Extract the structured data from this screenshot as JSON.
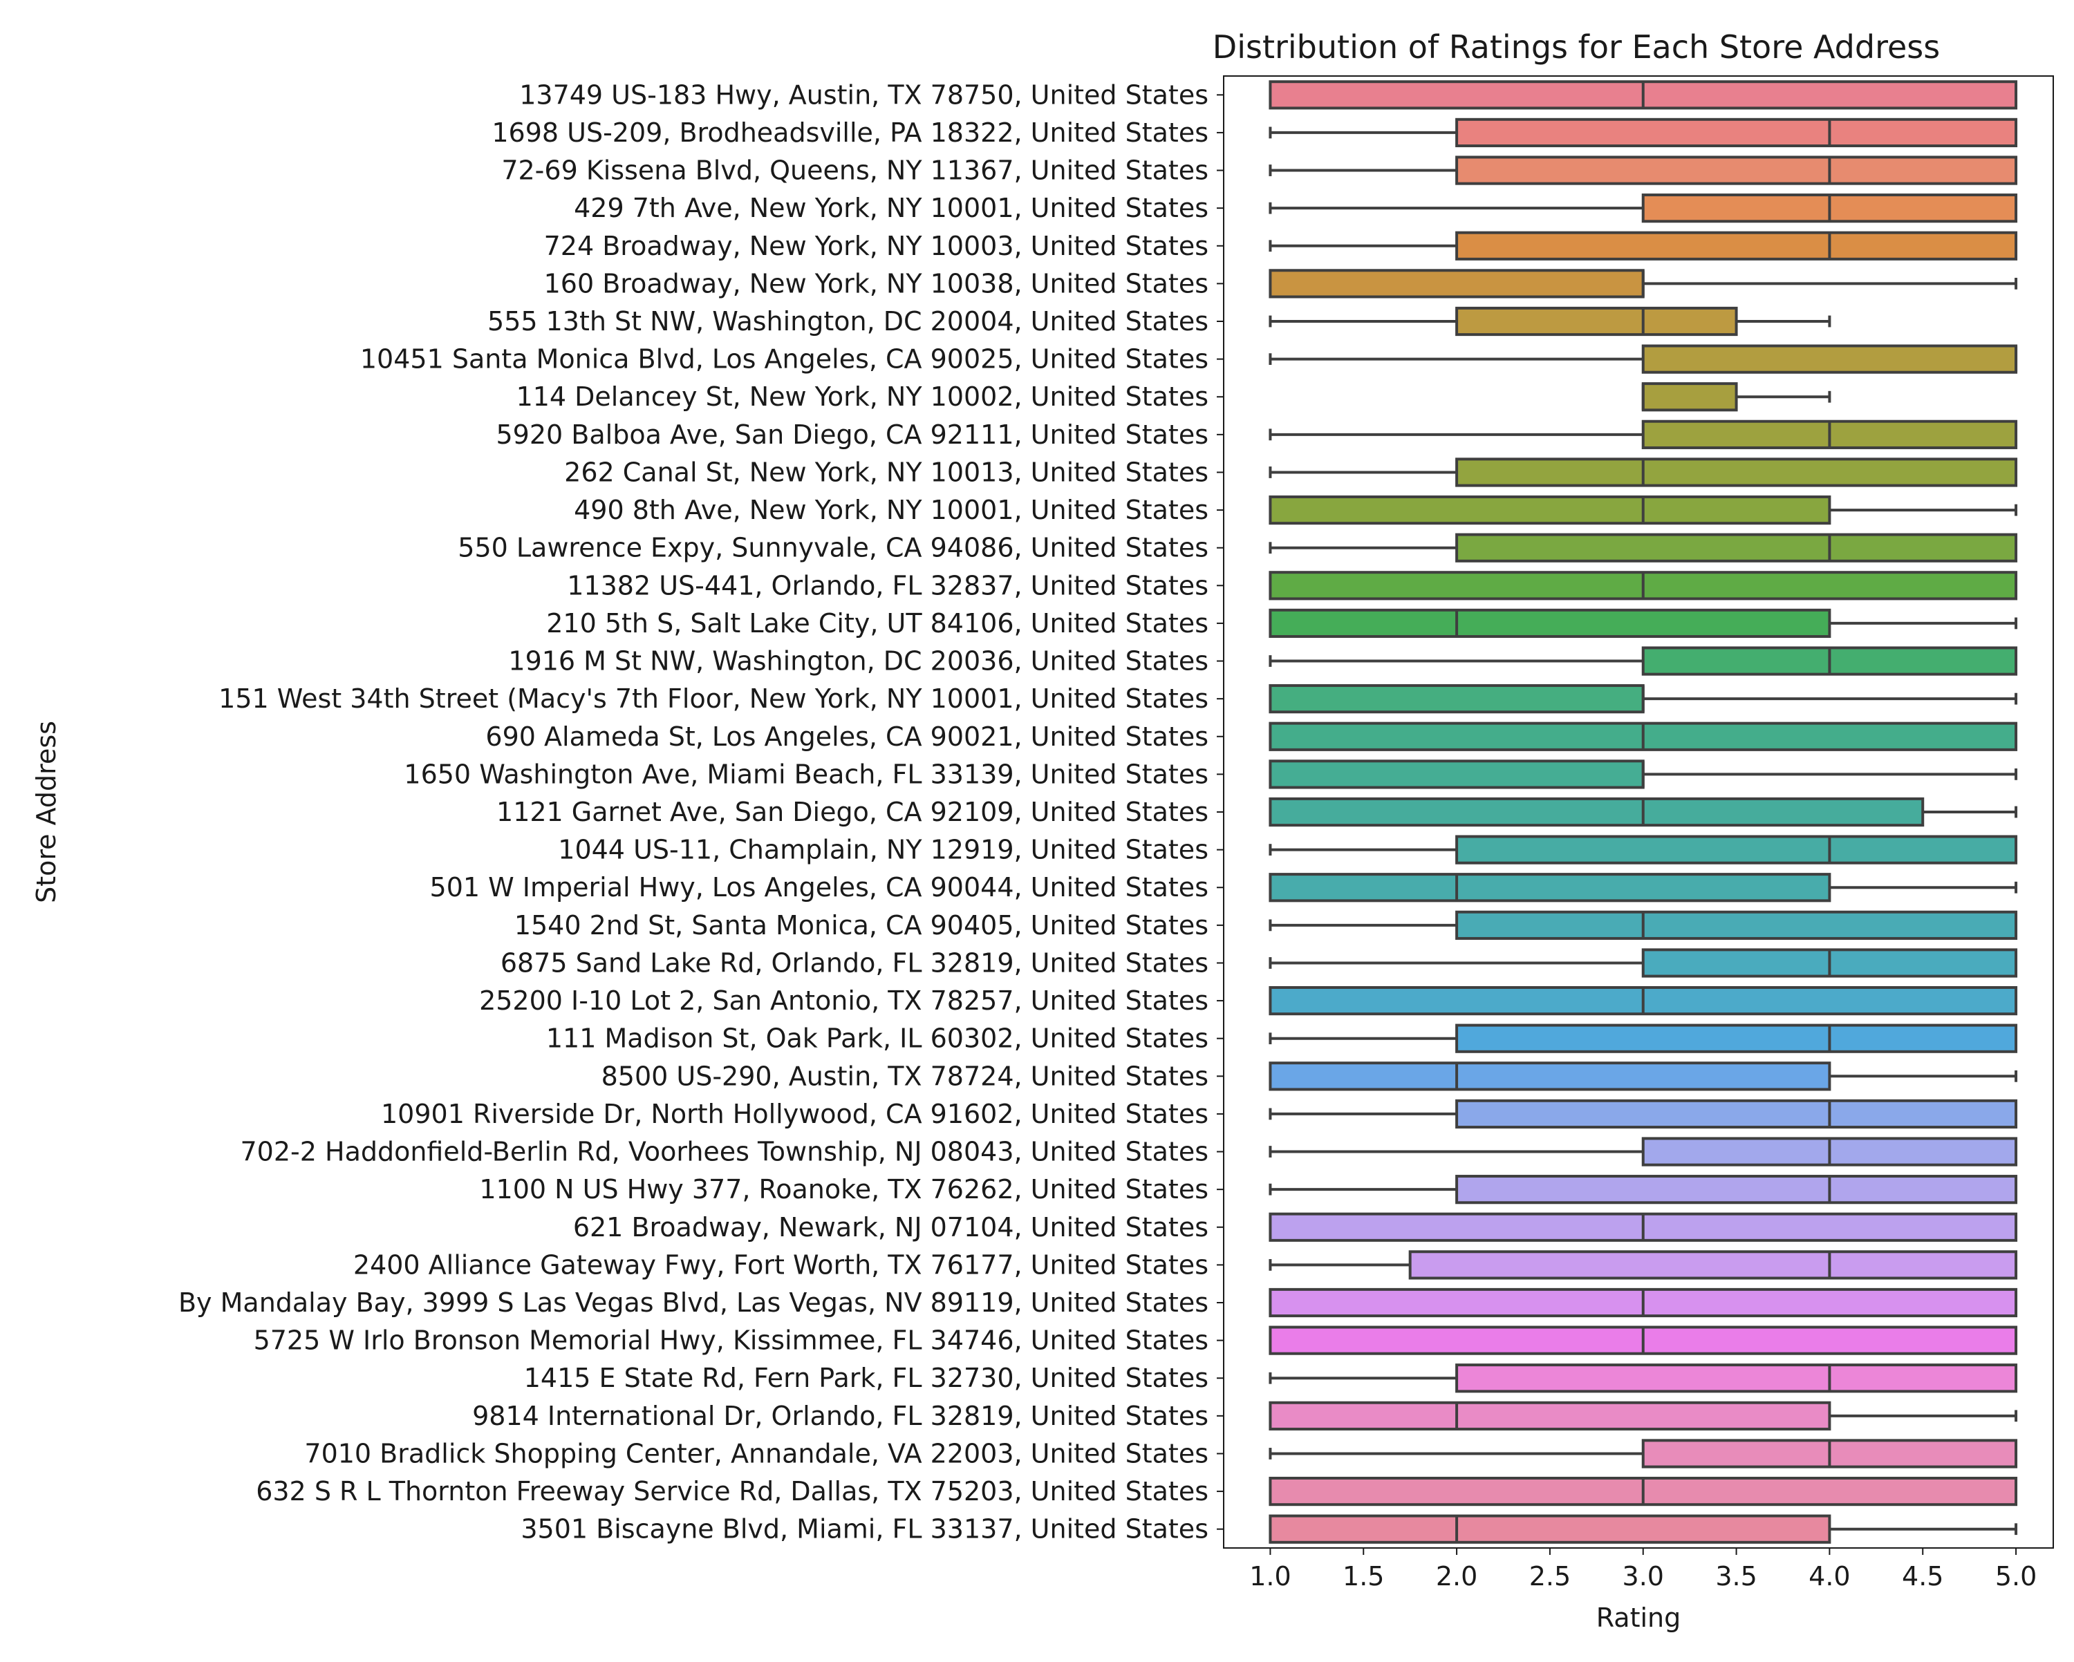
{
  "chart_data": {
    "type": "boxplot",
    "title": "Distribution of Ratings for Each Store Address",
    "xlabel": "Rating",
    "ylabel": "Store Address",
    "xlim": [
      0.75,
      5.2
    ],
    "xticks": [
      "1.0",
      "1.5",
      "2.0",
      "2.5",
      "3.0",
      "3.5",
      "4.0",
      "4.5",
      "5.0"
    ],
    "grid": false,
    "orientation": "horizontal",
    "boxes": [
      {
        "label": "13749 US-183 Hwy, Austin, TX 78750, United States",
        "whislo": 1,
        "q1": 1,
        "median": 3,
        "q3": 5,
        "whishi": 5,
        "color": "#e8808f"
      },
      {
        "label": "1698 US-209, Brodheadsville, PA 18322, United States",
        "whislo": 1,
        "q1": 2,
        "median": 4,
        "q3": 5,
        "whishi": 5,
        "color": "#e9827f"
      },
      {
        "label": "72-69 Kissena Blvd, Queens, NY 11367, United States",
        "whislo": 1,
        "q1": 2,
        "median": 4,
        "q3": 5,
        "whishi": 5,
        "color": "#e78b6f"
      },
      {
        "label": "429 7th Ave, New York, NY 10001, United States",
        "whislo": 1,
        "q1": 3,
        "median": 4,
        "q3": 5,
        "whishi": 5,
        "color": "#e48d56"
      },
      {
        "label": "724 Broadway, New York, NY 10003, United States",
        "whislo": 1,
        "q1": 2,
        "median": 4,
        "q3": 5,
        "whishi": 5,
        "color": "#da8e45"
      },
      {
        "label": "160 Broadway, New York, NY 10038, United States",
        "whislo": 1,
        "q1": 1,
        "median": 3,
        "q3": 3,
        "whishi": 5,
        "color": "#c99441"
      },
      {
        "label": "555 13th St NW, Washington, DC 20004, United States",
        "whislo": 1,
        "q1": 2,
        "median": 3,
        "q3": 3.5,
        "whishi": 4,
        "color": "#bd9a41"
      },
      {
        "label": "10451 Santa Monica Blvd, Los Angeles, CA 90025, United States",
        "whislo": 1,
        "q1": 3,
        "median": 5,
        "q3": 5,
        "whishi": 5,
        "color": "#b29d40"
      },
      {
        "label": "114 Delancey St, New York, NY 10002, United States",
        "whislo": 3,
        "q1": 3,
        "median": 3,
        "q3": 3.5,
        "whishi": 4,
        "color": "#a79f3f"
      },
      {
        "label": "5920 Balboa Ave, San Diego, CA 92111, United States",
        "whislo": 1,
        "q1": 3,
        "median": 4,
        "q3": 5,
        "whishi": 5,
        "color": "#9da23f"
      },
      {
        "label": "262 Canal St, New York, NY 10013, United States",
        "whislo": 1,
        "q1": 2,
        "median": 3,
        "q3": 5,
        "whishi": 5,
        "color": "#93a43f"
      },
      {
        "label": "490 8th Ave, New York, NY 10001, United States",
        "whislo": 1,
        "q1": 1,
        "median": 3,
        "q3": 4,
        "whishi": 5,
        "color": "#88a63f"
      },
      {
        "label": "550 Lawrence Expy, Sunnyvale, CA 94086, United States",
        "whislo": 1,
        "q1": 2,
        "median": 4,
        "q3": 5,
        "whishi": 5,
        "color": "#7aa841"
      },
      {
        "label": "11382 US-441, Orlando, FL 32837, United States",
        "whislo": 1,
        "q1": 1,
        "median": 3,
        "q3": 5,
        "whishi": 5,
        "color": "#5fab45"
      },
      {
        "label": "210 5th S, Salt Lake City, UT 84106, United States",
        "whislo": 1,
        "q1": 1,
        "median": 2,
        "q3": 4,
        "whishi": 5,
        "color": "#45ad58"
      },
      {
        "label": "1916 M St NW, Washington, DC 20036, United States",
        "whislo": 1,
        "q1": 3,
        "median": 4,
        "q3": 5,
        "whishi": 5,
        "color": "#44ae6f"
      },
      {
        "label": "151 West 34th Street (Macy's 7th Floor, New York, NY 10001, United States",
        "whislo": 1,
        "q1": 1,
        "median": 3,
        "q3": 3,
        "whishi": 5,
        "color": "#45ae80"
      },
      {
        "label": "690 Alameda St, Los Angeles, CA 90021, United States",
        "whislo": 1,
        "q1": 1,
        "median": 3,
        "q3": 5,
        "whishi": 5,
        "color": "#44ad8b"
      },
      {
        "label": "1650 Washington Ave, Miami Beach, FL 33139, United States",
        "whislo": 1,
        "q1": 1,
        "median": 3,
        "q3": 3,
        "whishi": 5,
        "color": "#45ad94"
      },
      {
        "label": "1121 Garnet Ave, San Diego, CA 92109, United States",
        "whislo": 1,
        "q1": 1,
        "median": 3,
        "q3": 4.5,
        "whishi": 5,
        "color": "#46ac9c"
      },
      {
        "label": "1044 US-11, Champlain, NY 12919, United States",
        "whislo": 1,
        "q1": 2,
        "median": 4,
        "q3": 5,
        "whishi": 5,
        "color": "#47aca4"
      },
      {
        "label": "501 W Imperial Hwy, Los Angeles, CA 90044, United States",
        "whislo": 1,
        "q1": 1,
        "median": 2,
        "q3": 4,
        "whishi": 5,
        "color": "#48acac"
      },
      {
        "label": "1540 2nd St, Santa Monica, CA 90405, United States",
        "whislo": 1,
        "q1": 2,
        "median": 3,
        "q3": 5,
        "whishi": 5,
        "color": "#49abb5"
      },
      {
        "label": "6875 Sand Lake Rd, Orlando, FL 32819, United States",
        "whislo": 1,
        "q1": 3,
        "median": 4,
        "q3": 5,
        "whishi": 5,
        "color": "#4aabbe"
      },
      {
        "label": "25200 I-10 Lot 2, San Antonio, TX 78257, United States",
        "whislo": 1,
        "q1": 1,
        "median": 3,
        "q3": 5,
        "whishi": 5,
        "color": "#4caaca"
      },
      {
        "label": "111 Madison St, Oak Park, IL 60302, United States",
        "whislo": 1,
        "q1": 2,
        "median": 4,
        "q3": 5,
        "whishi": 5,
        "color": "#50a8dc"
      },
      {
        "label": "8500 US-290, Austin, TX 78724, United States",
        "whislo": 1,
        "q1": 1,
        "median": 2,
        "q3": 4,
        "whishi": 5,
        "color": "#6aa6e7"
      },
      {
        "label": "10901 Riverside Dr, North Hollywood, CA 91602, United States",
        "whislo": 1,
        "q1": 2,
        "median": 4,
        "q3": 5,
        "whishi": 5,
        "color": "#8aa8ea"
      },
      {
        "label": "702-2 Haddonfield-Berlin Rd, Voorhees Township, NJ 08043, United States",
        "whislo": 1,
        "q1": 3,
        "median": 4,
        "q3": 5,
        "whishi": 5,
        "color": "#a2a8ec"
      },
      {
        "label": "1100 N US Hwy 377, Roanoke, TX 76262, United States",
        "whislo": 1,
        "q1": 2,
        "median": 4,
        "q3": 5,
        "whishi": 5,
        "color": "#b0a5ed"
      },
      {
        "label": "621 Broadway, Newark, NJ 07104, United States",
        "whislo": 1,
        "q1": 1,
        "median": 3,
        "q3": 5,
        "whishi": 5,
        "color": "#bca1ee"
      },
      {
        "label": "2400 Alliance Gateway Fwy, Fort Worth, TX 76177, United States",
        "whislo": 1,
        "q1": 1.75,
        "median": 4,
        "q3": 5,
        "whishi": 5,
        "color": "#c99cef"
      },
      {
        "label": "By Mandalay Bay, 3999 S Las Vegas Blvd, Las Vegas, NV 89119, United States",
        "whislo": 1,
        "q1": 1,
        "median": 3,
        "q3": 5,
        "whishi": 5,
        "color": "#d791ef"
      },
      {
        "label": "5725 W Irlo Bronson Memorial Hwy, Kissimmee, FL 34746, United States",
        "whislo": 1,
        "q1": 1,
        "median": 3,
        "q3": 5,
        "whishi": 5,
        "color": "#ea7de9"
      },
      {
        "label": "1415 E State Rd, Fern Park, FL 32730, United States",
        "whislo": 1,
        "q1": 2,
        "median": 4,
        "q3": 5,
        "whishi": 5,
        "color": "#ec86d8"
      },
      {
        "label": "9814 International Dr, Orlando, FL 32819, United States",
        "whislo": 1,
        "q1": 1,
        "median": 2,
        "q3": 4,
        "whishi": 5,
        "color": "#e98bc6"
      },
      {
        "label": "7010 Bradlick Shopping Center, Annandale, VA 22003, United States",
        "whislo": 1,
        "q1": 3,
        "median": 4,
        "q3": 5,
        "whishi": 5,
        "color": "#e88cba"
      },
      {
        "label": "632 S R L Thornton Freeway Service Rd, Dallas, TX 75203, United States",
        "whislo": 1,
        "q1": 1,
        "median": 3,
        "q3": 5,
        "whishi": 5,
        "color": "#e78bae"
      },
      {
        "label": "3501 Biscayne Blvd, Miami, FL 33137, United States",
        "whislo": 1,
        "q1": 1,
        "median": 2,
        "q3": 4,
        "whishi": 5,
        "color": "#e7899f"
      }
    ]
  }
}
